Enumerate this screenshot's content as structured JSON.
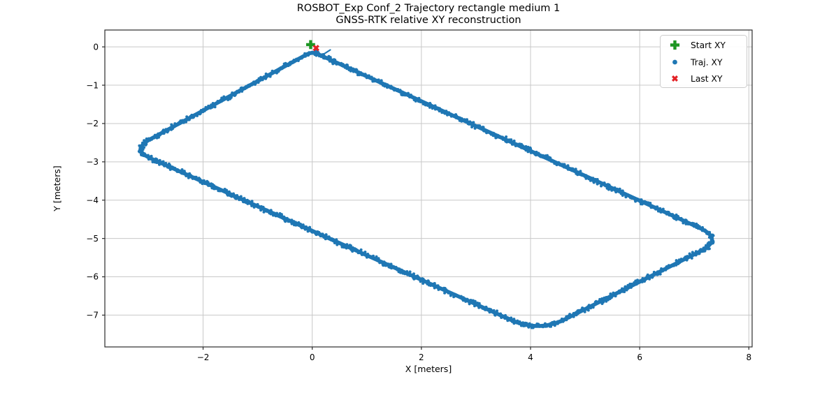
{
  "figure": {
    "background": "#ffffff"
  },
  "chart_data": {
    "type": "scatter",
    "title": "ROSBOT_Exp Conf_2 Trajectory rectangle medium 1",
    "subtitle": "GNSS-RTK relative XY reconstruction",
    "xlabel": "X [meters]",
    "ylabel": "Y [meters]",
    "xlim": [
      -3.8,
      8.06
    ],
    "ylim": [
      -7.83,
      0.44
    ],
    "xticks": [
      -2,
      0,
      2,
      4,
      6,
      8
    ],
    "xtick_labels": [
      "−2",
      "0",
      "2",
      "4",
      "6",
      "8"
    ],
    "yticks": [
      0,
      -1,
      -2,
      -3,
      -4,
      -5,
      -6,
      -7
    ],
    "ytick_labels": [
      "0",
      "−1",
      "−2",
      "−3",
      "−4",
      "−5",
      "−6",
      "−7"
    ],
    "grid": true,
    "grid_color": "#c8c8c8",
    "spine_color": "#2b2b2b",
    "colors": {
      "trajectory": "#1f77b4",
      "start": "#1e9623",
      "last": "#e32226"
    },
    "legend": {
      "position": "upper right",
      "entries": [
        {
          "label": "Start XY",
          "marker": "plus-filled",
          "color": "#1e9623"
        },
        {
          "label": "Traj. XY",
          "marker": "dot",
          "color": "#1f77b4"
        },
        {
          "label": "Last XY",
          "marker": "x-filled",
          "color": "#e32226"
        }
      ]
    },
    "series": [
      {
        "name": "Start XY",
        "type": "point",
        "x": -0.03,
        "y": 0.06
      },
      {
        "name": "Traj. XY",
        "type": "loop",
        "corners": [
          [
            0.0,
            -0.12
          ],
          [
            7.55,
            -5.02
          ],
          [
            4.15,
            -7.45
          ],
          [
            -3.32,
            -2.68
          ]
        ],
        "corner_radii": [
          0.12,
          0.5,
          0.55,
          0.4
        ],
        "band_halfwidth_m": 0.055,
        "apex_inner_pass": [
          [
            -0.06,
            -0.13
          ],
          [
            0.08,
            -0.21
          ],
          [
            0.22,
            -0.18
          ],
          [
            0.33,
            -0.08
          ]
        ]
      },
      {
        "name": "Last XY",
        "type": "point",
        "x": 0.07,
        "y": -0.03
      }
    ]
  }
}
